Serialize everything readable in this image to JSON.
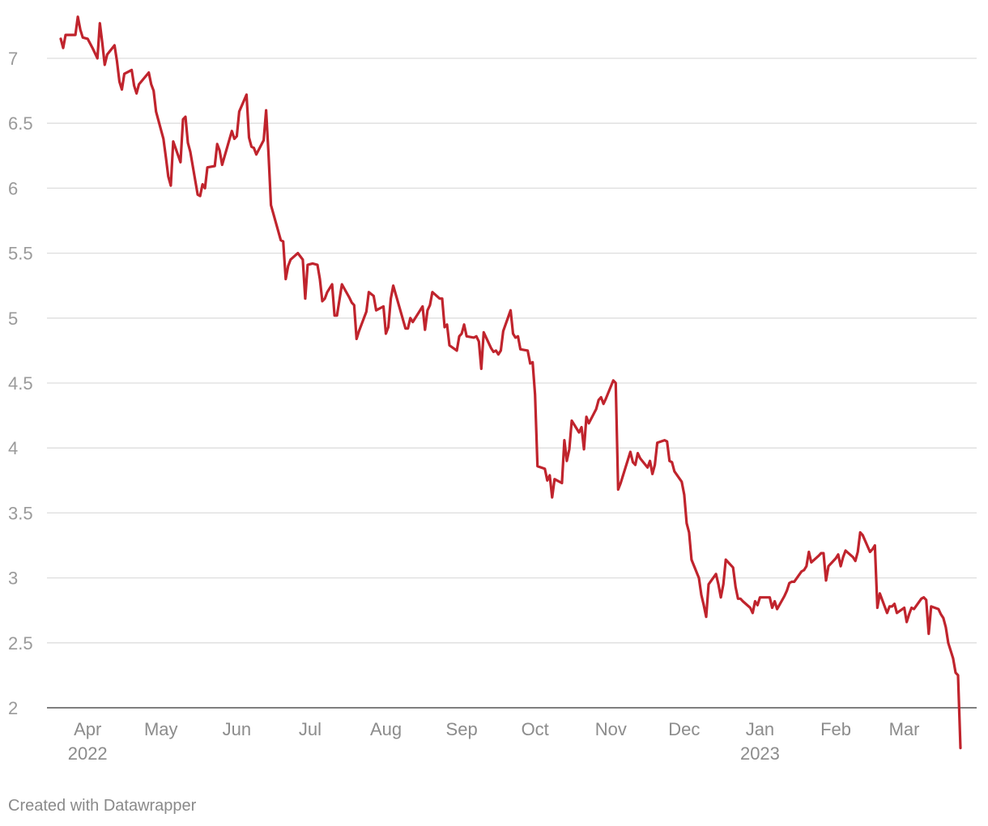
{
  "footer": {
    "credit": "Created with Datawrapper"
  },
  "colors": {
    "line": "#c0242d",
    "grid": "#dedede",
    "tick_text": "#9a9a9a",
    "baseline": "#333333"
  },
  "chart_data": {
    "type": "line",
    "title": "",
    "xlabel": "",
    "ylabel": "",
    "grid": true,
    "legend": "none",
    "ylim": [
      2,
      7
    ],
    "xlim": [
      "2022-03-21",
      "2023-03-21"
    ],
    "yticks": [
      {
        "value": 7,
        "label": "7"
      },
      {
        "value": 6.5,
        "label": "6.5"
      },
      {
        "value": 6,
        "label": "6"
      },
      {
        "value": 5.5,
        "label": "5.5"
      },
      {
        "value": 5,
        "label": "5"
      },
      {
        "value": 4.5,
        "label": "4.5"
      },
      {
        "value": 4,
        "label": "4"
      },
      {
        "value": 3.5,
        "label": "3.5"
      },
      {
        "value": 3,
        "label": "3"
      },
      {
        "value": 2.5,
        "label": "2.5"
      },
      {
        "value": 2,
        "label": "2"
      }
    ],
    "xticks": [
      {
        "date": "2022-04-01",
        "label": "Apr",
        "sublabel": "2022"
      },
      {
        "date": "2022-05-01",
        "label": "May",
        "sublabel": ""
      },
      {
        "date": "2022-06-01",
        "label": "Jun",
        "sublabel": ""
      },
      {
        "date": "2022-07-01",
        "label": "Jul",
        "sublabel": ""
      },
      {
        "date": "2022-08-01",
        "label": "Aug",
        "sublabel": ""
      },
      {
        "date": "2022-09-01",
        "label": "Sep",
        "sublabel": ""
      },
      {
        "date": "2022-10-01",
        "label": "Oct",
        "sublabel": ""
      },
      {
        "date": "2022-11-01",
        "label": "Nov",
        "sublabel": ""
      },
      {
        "date": "2022-12-01",
        "label": "Dec",
        "sublabel": ""
      },
      {
        "date": "2023-01-01",
        "label": "Jan",
        "sublabel": "2023"
      },
      {
        "date": "2023-02-01",
        "label": "Feb",
        "sublabel": ""
      },
      {
        "date": "2023-03-01",
        "label": "Mar",
        "sublabel": ""
      }
    ],
    "series": [
      {
        "points": [
          [
            "2022-03-21",
            7.15
          ],
          [
            "2022-03-22",
            7.08
          ],
          [
            "2022-03-23",
            7.18
          ],
          [
            "2022-03-25",
            7.18
          ],
          [
            "2022-03-27",
            7.18
          ],
          [
            "2022-03-28",
            7.32
          ],
          [
            "2022-03-29",
            7.22
          ],
          [
            "2022-03-30",
            7.16
          ],
          [
            "2022-04-01",
            7.15
          ],
          [
            "2022-04-03",
            7.08
          ],
          [
            "2022-04-05",
            7.0
          ],
          [
            "2022-04-06",
            7.27
          ],
          [
            "2022-04-07",
            7.12
          ],
          [
            "2022-04-08",
            6.95
          ],
          [
            "2022-04-09",
            7.03
          ],
          [
            "2022-04-12",
            7.1
          ],
          [
            "2022-04-13",
            6.98
          ],
          [
            "2022-04-14",
            6.82
          ],
          [
            "2022-04-15",
            6.76
          ],
          [
            "2022-04-16",
            6.88
          ],
          [
            "2022-04-19",
            6.91
          ],
          [
            "2022-04-20",
            6.79
          ],
          [
            "2022-04-21",
            6.73
          ],
          [
            "2022-04-22",
            6.8
          ],
          [
            "2022-04-26",
            6.89
          ],
          [
            "2022-04-27",
            6.8
          ],
          [
            "2022-04-28",
            6.75
          ],
          [
            "2022-04-29",
            6.59
          ],
          [
            "2022-05-02",
            6.38
          ],
          [
            "2022-05-03",
            6.24
          ],
          [
            "2022-05-04",
            6.09
          ],
          [
            "2022-05-05",
            6.02
          ],
          [
            "2022-05-06",
            6.36
          ],
          [
            "2022-05-09",
            6.2
          ],
          [
            "2022-05-10",
            6.53
          ],
          [
            "2022-05-11",
            6.55
          ],
          [
            "2022-05-12",
            6.35
          ],
          [
            "2022-05-13",
            6.28
          ],
          [
            "2022-05-16",
            5.95
          ],
          [
            "2022-05-17",
            5.94
          ],
          [
            "2022-05-18",
            6.03
          ],
          [
            "2022-05-19",
            6.0
          ],
          [
            "2022-05-20",
            6.16
          ],
          [
            "2022-05-23",
            6.17
          ],
          [
            "2022-05-24",
            6.34
          ],
          [
            "2022-05-25",
            6.29
          ],
          [
            "2022-05-26",
            6.18
          ],
          [
            "2022-05-30",
            6.44
          ],
          [
            "2022-05-31",
            6.38
          ],
          [
            "2022-06-01",
            6.4
          ],
          [
            "2022-06-02",
            6.59
          ],
          [
            "2022-06-05",
            6.72
          ],
          [
            "2022-06-06",
            6.39
          ],
          [
            "2022-06-07",
            6.32
          ],
          [
            "2022-06-08",
            6.31
          ],
          [
            "2022-06-09",
            6.26
          ],
          [
            "2022-06-12",
            6.37
          ],
          [
            "2022-06-13",
            6.6
          ],
          [
            "2022-06-14",
            6.26
          ],
          [
            "2022-06-15",
            5.87
          ],
          [
            "2022-06-19",
            5.6
          ],
          [
            "2022-06-20",
            5.59
          ],
          [
            "2022-06-21",
            5.3
          ],
          [
            "2022-06-22",
            5.4
          ],
          [
            "2022-06-23",
            5.45
          ],
          [
            "2022-06-26",
            5.5
          ],
          [
            "2022-06-28",
            5.45
          ],
          [
            "2022-06-29",
            5.15
          ],
          [
            "2022-06-30",
            5.41
          ],
          [
            "2022-07-02",
            5.42
          ],
          [
            "2022-07-04",
            5.41
          ],
          [
            "2022-07-05",
            5.3
          ],
          [
            "2022-07-06",
            5.13
          ],
          [
            "2022-07-07",
            5.15
          ],
          [
            "2022-07-08",
            5.2
          ],
          [
            "2022-07-10",
            5.26
          ],
          [
            "2022-07-11",
            5.02
          ],
          [
            "2022-07-12",
            5.02
          ],
          [
            "2022-07-14",
            5.26
          ],
          [
            "2022-07-17",
            5.16
          ],
          [
            "2022-07-18",
            5.12
          ],
          [
            "2022-07-19",
            5.1
          ],
          [
            "2022-07-20",
            4.84
          ],
          [
            "2022-07-21",
            4.9
          ],
          [
            "2022-07-24",
            5.05
          ],
          [
            "2022-07-25",
            5.2
          ],
          [
            "2022-07-27",
            5.17
          ],
          [
            "2022-07-28",
            5.06
          ],
          [
            "2022-07-31",
            5.09
          ],
          [
            "2022-08-01",
            4.88
          ],
          [
            "2022-08-02",
            4.93
          ],
          [
            "2022-08-03",
            5.15
          ],
          [
            "2022-08-04",
            5.25
          ],
          [
            "2022-08-09",
            4.92
          ],
          [
            "2022-08-10",
            4.92
          ],
          [
            "2022-08-11",
            5.0
          ],
          [
            "2022-08-12",
            4.97
          ],
          [
            "2022-08-15",
            5.06
          ],
          [
            "2022-08-16",
            5.09
          ],
          [
            "2022-08-17",
            4.91
          ],
          [
            "2022-08-18",
            5.06
          ],
          [
            "2022-08-19",
            5.1
          ],
          [
            "2022-08-20",
            5.2
          ],
          [
            "2022-08-23",
            5.15
          ],
          [
            "2022-08-24",
            5.15
          ],
          [
            "2022-08-25",
            4.93
          ],
          [
            "2022-08-26",
            4.95
          ],
          [
            "2022-08-27",
            4.79
          ],
          [
            "2022-08-30",
            4.75
          ],
          [
            "2022-08-31",
            4.86
          ],
          [
            "2022-09-01",
            4.88
          ],
          [
            "2022-09-02",
            4.95
          ],
          [
            "2022-09-03",
            4.86
          ],
          [
            "2022-09-06",
            4.85
          ],
          [
            "2022-09-07",
            4.86
          ],
          [
            "2022-09-08",
            4.82
          ],
          [
            "2022-09-09",
            4.61
          ],
          [
            "2022-09-10",
            4.89
          ],
          [
            "2022-09-13",
            4.77
          ],
          [
            "2022-09-14",
            4.74
          ],
          [
            "2022-09-15",
            4.75
          ],
          [
            "2022-09-16",
            4.72
          ],
          [
            "2022-09-17",
            4.75
          ],
          [
            "2022-09-18",
            4.9
          ],
          [
            "2022-09-21",
            5.06
          ],
          [
            "2022-09-22",
            4.88
          ],
          [
            "2022-09-23",
            4.85
          ],
          [
            "2022-09-24",
            4.86
          ],
          [
            "2022-09-25",
            4.76
          ],
          [
            "2022-09-28",
            4.75
          ],
          [
            "2022-09-29",
            4.65
          ],
          [
            "2022-09-30",
            4.66
          ],
          [
            "2022-10-01",
            4.41
          ],
          [
            "2022-10-02",
            3.86
          ],
          [
            "2022-10-05",
            3.84
          ],
          [
            "2022-10-06",
            3.75
          ],
          [
            "2022-10-07",
            3.79
          ],
          [
            "2022-10-08",
            3.62
          ],
          [
            "2022-10-09",
            3.76
          ],
          [
            "2022-10-12",
            3.73
          ],
          [
            "2022-10-13",
            4.06
          ],
          [
            "2022-10-14",
            3.9
          ],
          [
            "2022-10-15",
            3.99
          ],
          [
            "2022-10-16",
            4.21
          ],
          [
            "2022-10-19",
            4.12
          ],
          [
            "2022-10-20",
            4.16
          ],
          [
            "2022-10-21",
            3.99
          ],
          [
            "2022-10-22",
            4.24
          ],
          [
            "2022-10-23",
            4.19
          ],
          [
            "2022-10-26",
            4.3
          ],
          [
            "2022-10-27",
            4.37
          ],
          [
            "2022-10-28",
            4.39
          ],
          [
            "2022-10-29",
            4.34
          ],
          [
            "2022-10-30",
            4.38
          ],
          [
            "2022-11-02",
            4.52
          ],
          [
            "2022-11-03",
            4.5
          ],
          [
            "2022-11-04",
            3.68
          ],
          [
            "2022-11-05",
            3.73
          ],
          [
            "2022-11-06",
            3.79
          ],
          [
            "2022-11-09",
            3.97
          ],
          [
            "2022-11-10",
            3.89
          ],
          [
            "2022-11-11",
            3.87
          ],
          [
            "2022-11-12",
            3.96
          ],
          [
            "2022-11-13",
            3.92
          ],
          [
            "2022-11-16",
            3.85
          ],
          [
            "2022-11-17",
            3.9
          ],
          [
            "2022-11-18",
            3.8
          ],
          [
            "2022-11-19",
            3.87
          ],
          [
            "2022-11-20",
            4.04
          ],
          [
            "2022-11-23",
            4.06
          ],
          [
            "2022-11-24",
            4.05
          ],
          [
            "2022-11-25",
            3.9
          ],
          [
            "2022-11-26",
            3.89
          ],
          [
            "2022-11-27",
            3.82
          ],
          [
            "2022-11-30",
            3.74
          ],
          [
            "2022-12-01",
            3.64
          ],
          [
            "2022-12-02",
            3.42
          ],
          [
            "2022-12-03",
            3.35
          ],
          [
            "2022-12-04",
            3.14
          ],
          [
            "2022-12-07",
            3.0
          ],
          [
            "2022-12-08",
            2.87
          ],
          [
            "2022-12-09",
            2.79
          ],
          [
            "2022-12-10",
            2.7
          ],
          [
            "2022-12-11",
            2.95
          ],
          [
            "2022-12-14",
            3.03
          ],
          [
            "2022-12-15",
            2.95
          ],
          [
            "2022-12-16",
            2.85
          ],
          [
            "2022-12-17",
            2.95
          ],
          [
            "2022-12-18",
            3.14
          ],
          [
            "2022-12-21",
            3.08
          ],
          [
            "2022-12-22",
            2.93
          ],
          [
            "2022-12-23",
            2.84
          ],
          [
            "2022-12-24",
            2.84
          ],
          [
            "2022-12-25",
            2.82
          ],
          [
            "2022-12-28",
            2.77
          ],
          [
            "2022-12-29",
            2.73
          ],
          [
            "2022-12-30",
            2.82
          ],
          [
            "2022-12-31",
            2.79
          ],
          [
            "2023-01-01",
            2.85
          ],
          [
            "2023-01-04",
            2.85
          ],
          [
            "2023-01-05",
            2.85
          ],
          [
            "2023-01-06",
            2.77
          ],
          [
            "2023-01-07",
            2.82
          ],
          [
            "2023-01-08",
            2.76
          ],
          [
            "2023-01-11",
            2.86
          ],
          [
            "2023-01-12",
            2.9
          ],
          [
            "2023-01-13",
            2.96
          ],
          [
            "2023-01-14",
            2.97
          ],
          [
            "2023-01-15",
            2.97
          ],
          [
            "2023-01-18",
            3.05
          ],
          [
            "2023-01-19",
            3.06
          ],
          [
            "2023-01-20",
            3.09
          ],
          [
            "2023-01-21",
            3.2
          ],
          [
            "2023-01-22",
            3.12
          ],
          [
            "2023-01-25",
            3.17
          ],
          [
            "2023-01-26",
            3.19
          ],
          [
            "2023-01-27",
            3.19
          ],
          [
            "2023-01-28",
            2.98
          ],
          [
            "2023-01-29",
            3.09
          ],
          [
            "2023-02-01",
            3.15
          ],
          [
            "2023-02-02",
            3.18
          ],
          [
            "2023-02-03",
            3.09
          ],
          [
            "2023-02-04",
            3.16
          ],
          [
            "2023-02-05",
            3.21
          ],
          [
            "2023-02-08",
            3.16
          ],
          [
            "2023-02-09",
            3.13
          ],
          [
            "2023-02-10",
            3.2
          ],
          [
            "2023-02-11",
            3.35
          ],
          [
            "2023-02-12",
            3.33
          ],
          [
            "2023-02-15",
            3.2
          ],
          [
            "2023-02-16",
            3.22
          ],
          [
            "2023-02-17",
            3.25
          ],
          [
            "2023-02-18",
            2.77
          ],
          [
            "2023-02-19",
            2.88
          ],
          [
            "2023-02-22",
            2.73
          ],
          [
            "2023-02-23",
            2.78
          ],
          [
            "2023-02-24",
            2.78
          ],
          [
            "2023-02-25",
            2.8
          ],
          [
            "2023-02-26",
            2.73
          ],
          [
            "2023-03-01",
            2.77
          ],
          [
            "2023-03-02",
            2.66
          ],
          [
            "2023-03-03",
            2.72
          ],
          [
            "2023-03-04",
            2.77
          ],
          [
            "2023-03-05",
            2.76
          ],
          [
            "2023-03-08",
            2.84
          ],
          [
            "2023-03-09",
            2.85
          ],
          [
            "2023-03-10",
            2.83
          ],
          [
            "2023-03-11",
            2.57
          ],
          [
            "2023-03-12",
            2.78
          ],
          [
            "2023-03-15",
            2.76
          ],
          [
            "2023-03-16",
            2.72
          ],
          [
            "2023-03-17",
            2.69
          ],
          [
            "2023-03-18",
            2.62
          ],
          [
            "2023-03-19",
            2.5
          ],
          [
            "2023-03-21",
            2.38
          ],
          [
            "2023-03-22",
            2.27
          ],
          [
            "2023-03-23",
            2.25
          ],
          [
            "2023-03-24",
            1.69
          ]
        ]
      }
    ]
  }
}
